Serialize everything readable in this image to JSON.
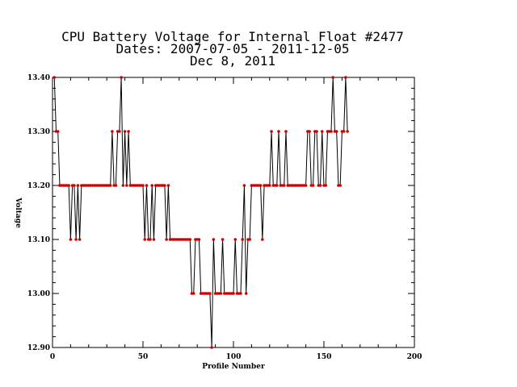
{
  "chart_data": {
    "type": "line",
    "title": "CPU Battery Voltage for Internal Float #2477",
    "subtitle": "Dates:  2007-07-05 -  2011-12-05",
    "date_line": "Dec  8, 2011",
    "xlabel": "Profile Number",
    "ylabel": "Voltage",
    "xlim": [
      0,
      200
    ],
    "ylim": [
      12.9,
      13.4
    ],
    "x_ticks": [
      "0",
      "50",
      "100",
      "150",
      "200"
    ],
    "y_ticks": [
      "12.90",
      "13.00",
      "13.10",
      "13.20",
      "13.30",
      "13.40"
    ],
    "grid": false,
    "line_color": "#000000",
    "marker_color": "#cc0000",
    "series": [
      {
        "x": [
          1,
          2,
          3,
          4,
          5,
          6,
          7,
          8,
          9,
          10,
          11,
          12,
          13,
          14,
          15,
          16,
          17,
          18,
          19,
          20,
          21,
          22,
          23,
          24,
          25,
          26,
          27,
          28,
          29,
          30,
          31,
          32,
          33,
          34,
          35,
          36,
          37,
          38,
          39,
          40,
          41,
          42,
          43,
          44,
          45,
          46,
          47,
          48,
          49,
          50,
          51,
          52,
          53,
          54,
          55,
          56,
          57,
          58,
          59,
          60,
          61,
          62,
          63,
          64,
          65,
          66,
          67,
          68,
          69,
          70,
          71,
          72,
          73,
          74,
          75,
          76,
          77,
          78,
          79,
          80,
          81,
          82,
          83,
          84,
          85,
          86,
          87,
          88,
          89,
          90,
          91,
          92,
          93,
          94,
          95,
          96,
          97,
          98,
          99,
          100,
          101,
          102,
          103,
          104,
          105,
          106,
          107,
          108,
          109,
          110,
          111,
          112,
          113,
          114,
          115,
          116,
          117,
          118,
          119,
          120,
          121,
          122,
          123,
          124,
          125,
          126,
          127,
          128,
          129,
          130,
          131,
          132,
          133,
          134,
          135,
          136,
          137,
          138,
          139,
          140,
          141,
          142,
          143,
          144,
          145,
          146,
          147,
          148,
          149,
          150,
          151,
          152,
          153,
          154,
          155,
          156,
          157,
          158,
          159,
          160,
          161,
          162,
          163
        ],
        "values": [
          13.4,
          13.3,
          13.3,
          13.2,
          13.2,
          13.2,
          13.2,
          13.2,
          13.2,
          13.1,
          13.2,
          13.2,
          13.1,
          13.2,
          13.1,
          13.2,
          13.2,
          13.2,
          13.2,
          13.2,
          13.2,
          13.2,
          13.2,
          13.2,
          13.2,
          13.2,
          13.2,
          13.2,
          13.2,
          13.2,
          13.2,
          13.2,
          13.3,
          13.2,
          13.2,
          13.3,
          13.3,
          13.4,
          13.2,
          13.3,
          13.2,
          13.3,
          13.2,
          13.2,
          13.2,
          13.2,
          13.2,
          13.2,
          13.2,
          13.2,
          13.1,
          13.2,
          13.1,
          13.1,
          13.2,
          13.1,
          13.2,
          13.2,
          13.2,
          13.2,
          13.2,
          13.2,
          13.1,
          13.2,
          13.1,
          13.1,
          13.1,
          13.1,
          13.1,
          13.1,
          13.1,
          13.1,
          13.1,
          13.1,
          13.1,
          13.1,
          13.0,
          13.0,
          13.1,
          13.1,
          13.1,
          13.0,
          13.0,
          13.0,
          13.0,
          13.0,
          13.0,
          12.9,
          13.1,
          13.0,
          13.0,
          13.0,
          13.0,
          13.1,
          13.0,
          13.0,
          13.0,
          13.0,
          13.0,
          13.0,
          13.1,
          13.0,
          13.0,
          13.0,
          13.1,
          13.2,
          13.0,
          13.1,
          13.1,
          13.2,
          13.2,
          13.2,
          13.2,
          13.2,
          13.2,
          13.1,
          13.2,
          13.2,
          13.2,
          13.2,
          13.3,
          13.2,
          13.2,
          13.2,
          13.3,
          13.2,
          13.2,
          13.2,
          13.3,
          13.2,
          13.2,
          13.2,
          13.2,
          13.2,
          13.2,
          13.2,
          13.2,
          13.2,
          13.2,
          13.2,
          13.3,
          13.3,
          13.2,
          13.2,
          13.3,
          13.3,
          13.2,
          13.2,
          13.3,
          13.2,
          13.2,
          13.3,
          13.3,
          13.3,
          13.4,
          13.3,
          13.3,
          13.2,
          13.2,
          13.3,
          13.3,
          13.4,
          13.3
        ]
      }
    ]
  }
}
